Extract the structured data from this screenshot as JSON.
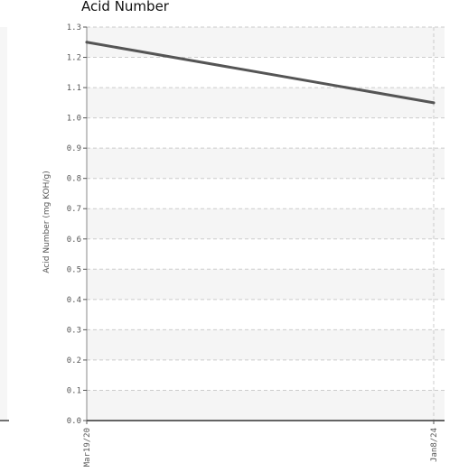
{
  "chart_data": {
    "type": "line",
    "title": "Acid Number",
    "xlabel": "",
    "ylabel": "Acid Number (mg KOH/g)",
    "categories": [
      "Mar19/20",
      "Jan8/24"
    ],
    "series": [
      {
        "values": [
          1.25,
          1.05
        ]
      }
    ],
    "ylim": [
      0,
      1.3
    ],
    "yticks": [
      "0.0",
      "0.1",
      "0.2",
      "0.3",
      "0.4",
      "0.5",
      "0.6",
      "0.7",
      "0.8",
      "0.9",
      "1.0",
      "1.1",
      "1.2",
      "1.3"
    ],
    "grid": true,
    "line_color": "#555555",
    "band_color": "#f5f5f5",
    "grid_color": "#cccccc"
  }
}
